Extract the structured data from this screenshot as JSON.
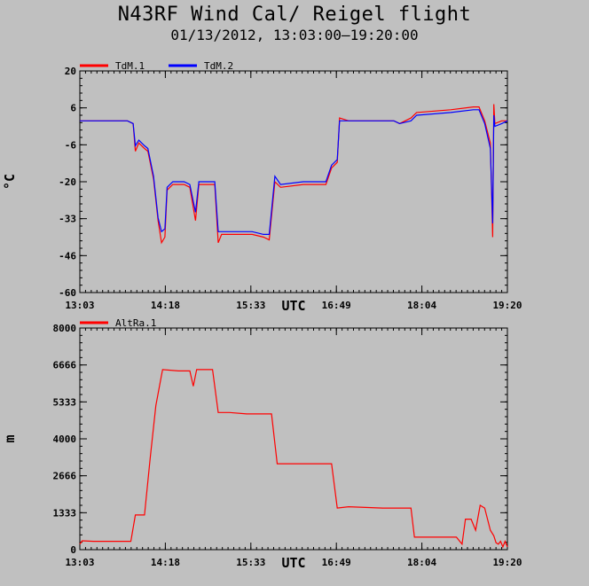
{
  "title": "N43RF Wind Cal/ Reigel flight",
  "subtitle": "01/13/2012, 13:03:00–19:20:00",
  "chart_data": [
    {
      "type": "line",
      "ylabel": "°C",
      "xlabel": "UTC",
      "x_tick_labels": [
        "13:03",
        "14:18",
        "15:33",
        "16:49",
        "18:04",
        "19:20"
      ],
      "y_tick_labels": [
        "20",
        "6",
        "-6",
        "-20",
        "-33",
        "-46",
        "-60"
      ],
      "ylim": [
        -60,
        20
      ],
      "xlim": [
        "13:03",
        "19:20"
      ],
      "legend_position": "top-left",
      "series": [
        {
          "name": "TdM.1",
          "color": "#ff0000",
          "points": [
            [
              "13:03",
              2
            ],
            [
              "13:10",
              2
            ],
            [
              "13:30",
              2
            ],
            [
              "13:45",
              2
            ],
            [
              "13:50",
              1
            ],
            [
              "13:52",
              -9
            ],
            [
              "13:55",
              -6
            ],
            [
              "14:00",
              -8
            ],
            [
              "14:03",
              -9
            ],
            [
              "14:08",
              -19
            ],
            [
              "14:12",
              -34
            ],
            [
              "14:15",
              -42
            ],
            [
              "14:18",
              -40
            ],
            [
              "14:20",
              -23
            ],
            [
              "14:25",
              -21
            ],
            [
              "14:35",
              -21
            ],
            [
              "14:40",
              -22
            ],
            [
              "14:45",
              -34
            ],
            [
              "14:48",
              -21
            ],
            [
              "14:55",
              -21
            ],
            [
              "15:02",
              -21
            ],
            [
              "15:05",
              -42
            ],
            [
              "15:08",
              -39
            ],
            [
              "15:20",
              -39
            ],
            [
              "15:35",
              -39
            ],
            [
              "15:45",
              -40
            ],
            [
              "15:50",
              -41
            ],
            [
              "15:55",
              -20
            ],
            [
              "16:00",
              -22
            ],
            [
              "16:20",
              -21
            ],
            [
              "16:40",
              -21
            ],
            [
              "16:45",
              -15
            ],
            [
              "16:50",
              -13
            ],
            [
              "16:52",
              3
            ],
            [
              "17:00",
              2
            ],
            [
              "17:30",
              2
            ],
            [
              "17:40",
              2
            ],
            [
              "17:45",
              1
            ],
            [
              "17:55",
              3
            ],
            [
              "18:00",
              5
            ],
            [
              "18:30",
              6
            ],
            [
              "18:50",
              7
            ],
            [
              "18:55",
              7
            ],
            [
              "19:00",
              2
            ],
            [
              "19:05",
              -6
            ],
            [
              "19:07",
              -40
            ],
            [
              "19:08",
              8
            ],
            [
              "19:09",
              1
            ],
            [
              "19:15",
              2
            ],
            [
              "19:20",
              2
            ]
          ]
        },
        {
          "name": "TdM.2",
          "color": "#0000ff",
          "points": [
            [
              "13:03",
              2
            ],
            [
              "13:10",
              2
            ],
            [
              "13:30",
              2
            ],
            [
              "13:45",
              2
            ],
            [
              "13:50",
              1
            ],
            [
              "13:52",
              -7
            ],
            [
              "13:55",
              -5
            ],
            [
              "14:00",
              -7
            ],
            [
              "14:03",
              -8
            ],
            [
              "14:08",
              -18
            ],
            [
              "14:12",
              -33
            ],
            [
              "14:15",
              -38
            ],
            [
              "14:18",
              -37
            ],
            [
              "14:20",
              -22
            ],
            [
              "14:25",
              -20
            ],
            [
              "14:35",
              -20
            ],
            [
              "14:40",
              -21
            ],
            [
              "14:45",
              -31
            ],
            [
              "14:48",
              -20
            ],
            [
              "14:55",
              -20
            ],
            [
              "15:02",
              -20
            ],
            [
              "15:05",
              -38
            ],
            [
              "15:08",
              -38
            ],
            [
              "15:20",
              -38
            ],
            [
              "15:35",
              -38
            ],
            [
              "15:45",
              -39
            ],
            [
              "15:50",
              -39
            ],
            [
              "15:55",
              -18
            ],
            [
              "16:00",
              -21
            ],
            [
              "16:20",
              -20
            ],
            [
              "16:40",
              -20
            ],
            [
              "16:45",
              -14
            ],
            [
              "16:50",
              -12
            ],
            [
              "16:52",
              2
            ],
            [
              "17:00",
              2
            ],
            [
              "17:30",
              2
            ],
            [
              "17:40",
              2
            ],
            [
              "17:45",
              1
            ],
            [
              "17:55",
              2
            ],
            [
              "18:00",
              4
            ],
            [
              "18:30",
              5
            ],
            [
              "18:50",
              6
            ],
            [
              "18:55",
              6
            ],
            [
              "19:00",
              1
            ],
            [
              "19:05",
              -8
            ],
            [
              "19:07",
              -35
            ],
            [
              "19:08",
              4
            ],
            [
              "19:09",
              0
            ],
            [
              "19:15",
              1
            ],
            [
              "19:20",
              2
            ]
          ]
        }
      ]
    },
    {
      "type": "line",
      "ylabel": "m",
      "xlabel": "UTC",
      "x_tick_labels": [
        "13:03",
        "14:18",
        "15:33",
        "16:49",
        "18:04",
        "19:20"
      ],
      "y_tick_labels": [
        "8000",
        "6666",
        "5333",
        "4000",
        "2666",
        "1333",
        "0"
      ],
      "ylim": [
        0,
        8000
      ],
      "xlim": [
        "13:03",
        "19:20"
      ],
      "legend_position": "top-left",
      "series": [
        {
          "name": "AltRa.1",
          "color": "#ff0000",
          "points": [
            [
              "13:03",
              200
            ],
            [
              "13:05",
              320
            ],
            [
              "13:15",
              300
            ],
            [
              "13:30",
              300
            ],
            [
              "13:48",
              300
            ],
            [
              "13:52",
              1250
            ],
            [
              "14:00",
              1250
            ],
            [
              "14:05",
              3300
            ],
            [
              "14:10",
              5200
            ],
            [
              "14:15",
              6300
            ],
            [
              "14:16",
              6500
            ],
            [
              "14:30",
              6450
            ],
            [
              "14:40",
              6450
            ],
            [
              "14:43",
              5900
            ],
            [
              "14:46",
              6500
            ],
            [
              "14:55",
              6500
            ],
            [
              "15:00",
              6500
            ],
            [
              "15:05",
              4950
            ],
            [
              "15:15",
              4950
            ],
            [
              "15:30",
              4900
            ],
            [
              "15:45",
              4900
            ],
            [
              "15:52",
              4900
            ],
            [
              "15:57",
              3100
            ],
            [
              "16:10",
              3100
            ],
            [
              "16:45",
              3100
            ],
            [
              "16:50",
              1500
            ],
            [
              "17:00",
              1550
            ],
            [
              "17:30",
              1500
            ],
            [
              "17:55",
              1500
            ],
            [
              "17:58",
              450
            ],
            [
              "18:10",
              450
            ],
            [
              "18:35",
              450
            ],
            [
              "18:40",
              200
            ],
            [
              "18:43",
              1100
            ],
            [
              "18:48",
              1100
            ],
            [
              "18:52",
              700
            ],
            [
              "18:56",
              1600
            ],
            [
              "19:00",
              1500
            ],
            [
              "19:05",
              700
            ],
            [
              "19:08",
              500
            ],
            [
              "19:10",
              250
            ],
            [
              "19:12",
              200
            ],
            [
              "19:14",
              300
            ],
            [
              "19:16",
              100
            ],
            [
              "19:18",
              300
            ],
            [
              "19:20",
              100
            ]
          ]
        }
      ]
    }
  ]
}
